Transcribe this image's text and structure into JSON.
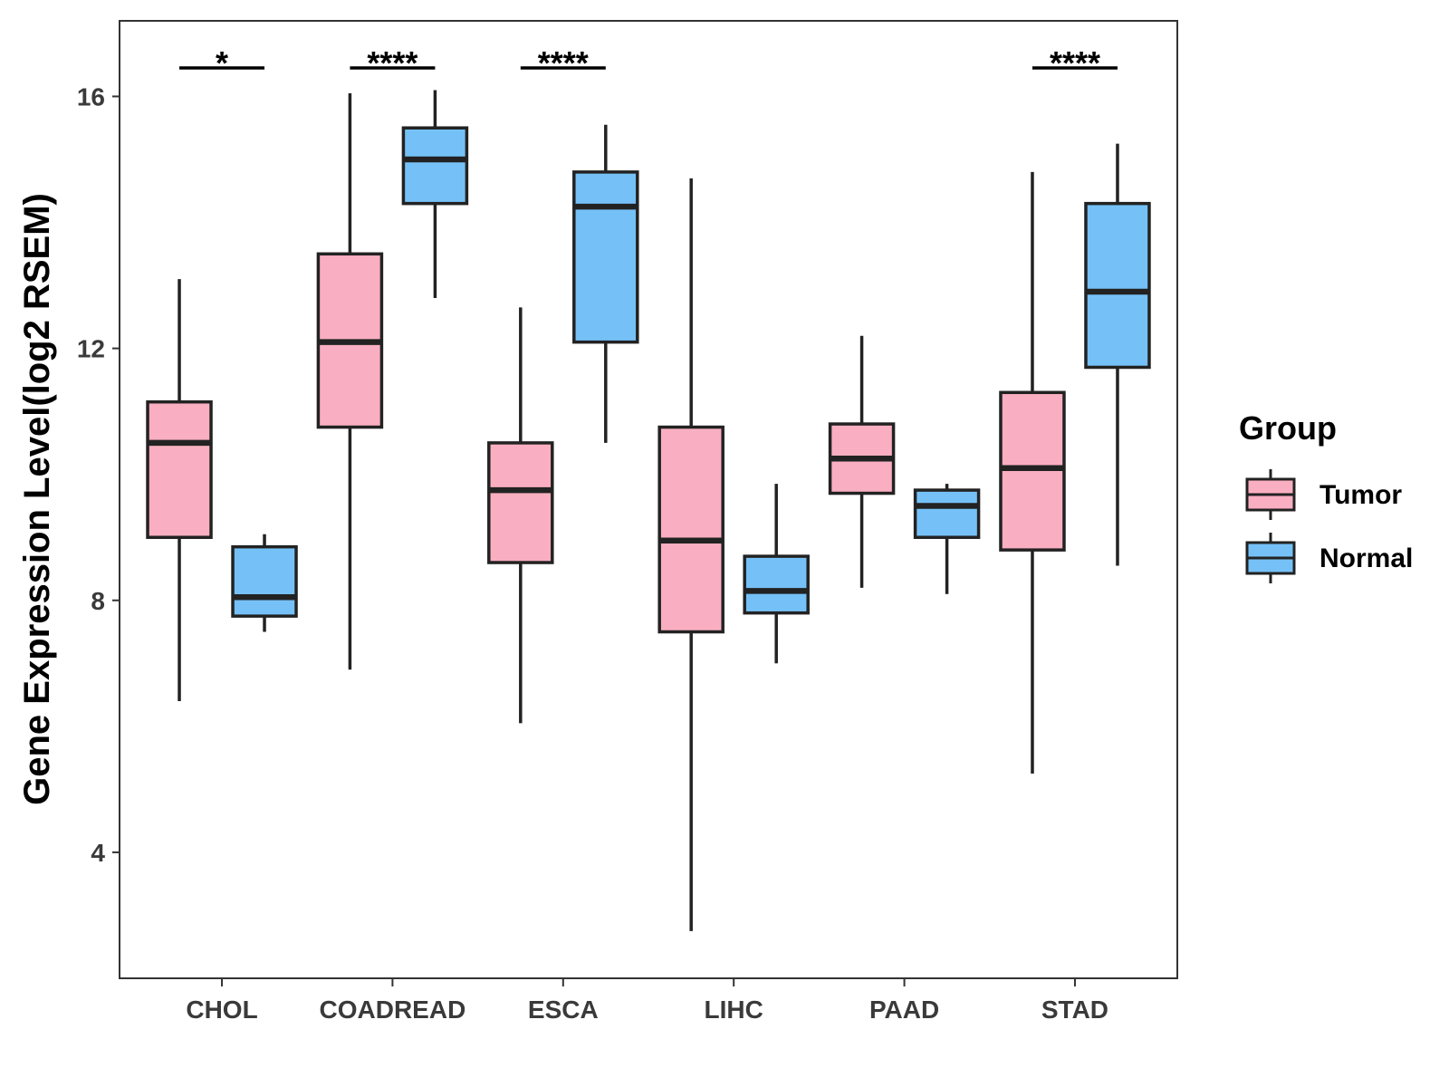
{
  "chart_data": {
    "type": "boxplot",
    "ylabel": "Gene Expression Level(log2 RSEM)",
    "xlabel": "",
    "ylim": [
      2.0,
      17.2
    ],
    "yticks": [
      4,
      8,
      12,
      16
    ],
    "categories": [
      "CHOL",
      "COADREAD",
      "ESCA",
      "LIHC",
      "PAAD",
      "STAD"
    ],
    "legend": {
      "title": "Group",
      "position": "right",
      "entries": [
        {
          "name": "Tumor",
          "color": "#F9AFC1"
        },
        {
          "name": "Normal",
          "color": "#75C1F7"
        }
      ]
    },
    "series": [
      {
        "name": "Tumor",
        "color": "#F9AFC1",
        "boxes": [
          {
            "min": 6.4,
            "q1": 9.0,
            "median": 10.5,
            "q3": 11.15,
            "max": 13.1
          },
          {
            "min": 6.9,
            "q1": 10.75,
            "median": 12.1,
            "q3": 13.5,
            "max": 16.05
          },
          {
            "min": 6.05,
            "q1": 8.6,
            "median": 9.75,
            "q3": 10.5,
            "max": 12.65
          },
          {
            "min": 2.75,
            "q1": 7.5,
            "median": 8.95,
            "q3": 10.75,
            "max": 14.7
          },
          {
            "min": 8.2,
            "q1": 9.7,
            "median": 10.25,
            "q3": 10.8,
            "max": 12.2
          },
          {
            "min": 5.25,
            "q1": 8.8,
            "median": 10.1,
            "q3": 11.3,
            "max": 14.8
          }
        ]
      },
      {
        "name": "Normal",
        "color": "#75C1F7",
        "boxes": [
          {
            "min": 7.5,
            "q1": 7.75,
            "median": 8.05,
            "q3": 8.85,
            "max": 9.05
          },
          {
            "min": 12.8,
            "q1": 14.3,
            "median": 15.0,
            "q3": 15.5,
            "max": 16.1
          },
          {
            "min": 10.5,
            "q1": 12.1,
            "median": 14.25,
            "q3": 14.8,
            "max": 15.55
          },
          {
            "min": 7.0,
            "q1": 7.8,
            "median": 8.15,
            "q3": 8.7,
            "max": 9.85
          },
          {
            "min": 8.1,
            "q1": 9.0,
            "median": 9.5,
            "q3": 9.75,
            "max": 9.85
          },
          {
            "min": 8.55,
            "q1": 11.7,
            "median": 12.9,
            "q3": 14.3,
            "max": 15.25
          }
        ]
      }
    ],
    "significance": [
      {
        "category": "CHOL",
        "label": "*"
      },
      {
        "category": "COADREAD",
        "label": "****"
      },
      {
        "category": "ESCA",
        "label": "****"
      },
      {
        "category": "STAD",
        "label": "****"
      }
    ]
  }
}
